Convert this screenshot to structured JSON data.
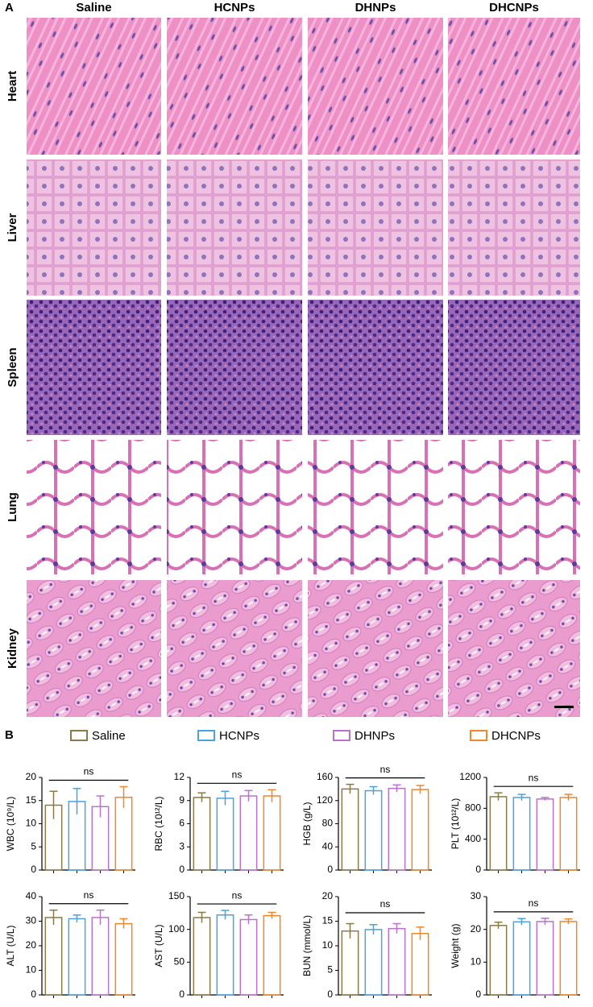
{
  "panel_a": {
    "label": "A",
    "columns": [
      "Saline",
      "HCNPs",
      "DHNPs",
      "DHCNPs"
    ],
    "rows": [
      "Heart",
      "Liver",
      "Spleen",
      "Lung",
      "Kidney"
    ]
  },
  "panel_b_label": "B",
  "legend": [
    {
      "name": "Saline",
      "color": "#8b7a48"
    },
    {
      "name": "HCNPs",
      "color": "#4aa3df"
    },
    {
      "name": "DHNPs",
      "color": "#b873c9"
    },
    {
      "name": "DHCNPs",
      "color": "#f0862a"
    }
  ],
  "chart_data": [
    {
      "type": "bar",
      "y_label": "WBC (10⁹/L)",
      "annotation": "ns",
      "values": [
        14.0,
        14.8,
        13.7,
        15.7
      ],
      "errors": [
        3.0,
        2.8,
        2.3,
        2.3
      ],
      "ylim": [
        0,
        20
      ],
      "yticks": [
        0,
        5,
        10,
        15,
        20
      ]
    },
    {
      "type": "bar",
      "y_label": "RBC (10¹²/L)",
      "annotation": "ns",
      "values": [
        9.4,
        9.3,
        9.6,
        9.6
      ],
      "errors": [
        0.6,
        0.9,
        0.7,
        0.8
      ],
      "ylim": [
        0,
        12
      ],
      "yticks": [
        0,
        3,
        6,
        9,
        12
      ]
    },
    {
      "type": "bar",
      "y_label": "HGB (g/L)",
      "annotation": "ns",
      "values": [
        140,
        137,
        141,
        139
      ],
      "errors": [
        8,
        7,
        6,
        7
      ],
      "ylim": [
        0,
        160
      ],
      "yticks": [
        0,
        40,
        80,
        120,
        160
      ]
    },
    {
      "type": "bar",
      "y_label": "PLT (10¹²/L)",
      "annotation": "ns",
      "values": [
        950,
        940,
        920,
        940
      ],
      "errors": [
        50,
        40,
        20,
        40
      ],
      "ylim": [
        0,
        1200
      ],
      "yticks": [
        0,
        400,
        800,
        1200
      ]
    },
    {
      "type": "bar",
      "y_label": "ALT (U/L)",
      "annotation": "ns",
      "values": [
        31.5,
        31,
        31.5,
        29
      ],
      "errors": [
        3,
        1.5,
        3,
        2
      ],
      "ylim": [
        0,
        40
      ],
      "yticks": [
        0,
        10,
        20,
        30,
        40
      ]
    },
    {
      "type": "bar",
      "y_label": "AST (U/L)",
      "annotation": "ns",
      "values": [
        118,
        122,
        115,
        121
      ],
      "errors": [
        8,
        7,
        7,
        5
      ],
      "ylim": [
        0,
        150
      ],
      "yticks": [
        0,
        50,
        100,
        150
      ]
    },
    {
      "type": "bar",
      "y_label": "BUN (mmol/L)",
      "annotation": "ns",
      "values": [
        13,
        13.3,
        13.5,
        12.5
      ],
      "errors": [
        1.5,
        1,
        1,
        1.3
      ],
      "ylim": [
        0,
        20
      ],
      "yticks": [
        0,
        5,
        10,
        15,
        20
      ]
    },
    {
      "type": "bar",
      "y_label": "Weight (g)",
      "annotation": "ns",
      "values": [
        21.2,
        22.3,
        22.4,
        22.4
      ],
      "errors": [
        1,
        1,
        1,
        0.8
      ],
      "ylim": [
        0,
        30
      ],
      "yticks": [
        0,
        10,
        20,
        30
      ]
    }
  ]
}
